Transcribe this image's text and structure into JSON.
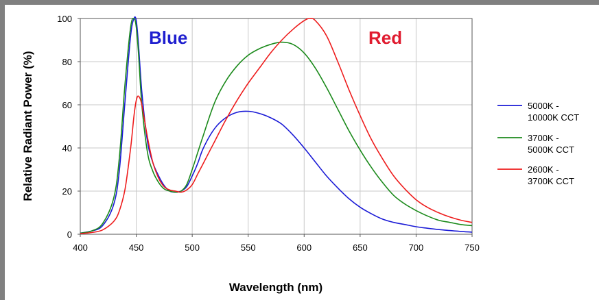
{
  "chart_data": {
    "type": "line",
    "title": "",
    "xlabel": "Wavelength (nm)",
    "ylabel": "Relative Radiant Power (%)",
    "xlim": [
      400,
      750
    ],
    "ylim": [
      0,
      100
    ],
    "xticks": [
      400,
      450,
      500,
      550,
      600,
      650,
      700,
      750
    ],
    "yticks": [
      0,
      20,
      40,
      60,
      80,
      100
    ],
    "grid": true,
    "legend_position": "right",
    "annotations": [
      {
        "text": "Blue",
        "color": "#1f1fcf"
      },
      {
        "text": "Red",
        "color": "#e01b2f"
      }
    ],
    "series": [
      {
        "name": "5000K - 10000K CCT",
        "legend_lines": [
          "5000K -",
          "10000K CCT"
        ],
        "color": "#1a1ad6",
        "x": [
          400,
          410,
          420,
          430,
          435,
          440,
          445,
          448,
          450,
          452,
          455,
          460,
          465,
          470,
          475,
          480,
          485,
          490,
          495,
          500,
          505,
          510,
          520,
          530,
          540,
          550,
          560,
          570,
          580,
          590,
          600,
          610,
          620,
          630,
          640,
          650,
          660,
          670,
          680,
          690,
          700,
          710,
          720,
          730,
          740,
          750
        ],
        "y": [
          0.5,
          1.5,
          4,
          14,
          30,
          62,
          92,
          100,
          99,
          88,
          66,
          43,
          33,
          27,
          22.5,
          20,
          19.5,
          20,
          22,
          27,
          33,
          40,
          49,
          54,
          56.5,
          57,
          56,
          54,
          51,
          46,
          40,
          33.5,
          27,
          21.5,
          16.5,
          12.5,
          9.5,
          7,
          5.5,
          4.5,
          3.5,
          2.8,
          2.2,
          1.7,
          1.3,
          1.0
        ]
      },
      {
        "name": "3700K - 5000K CCT",
        "legend_lines": [
          "3700K -",
          "5000K CCT"
        ],
        "color": "#1b8a1b",
        "x": [
          400,
          410,
          420,
          430,
          435,
          440,
          445,
          448,
          450,
          452,
          455,
          460,
          465,
          470,
          475,
          480,
          485,
          490,
          495,
          500,
          505,
          510,
          520,
          530,
          540,
          550,
          560,
          570,
          580,
          590,
          600,
          610,
          620,
          630,
          640,
          650,
          660,
          670,
          680,
          690,
          700,
          710,
          720,
          730,
          740,
          750
        ],
        "y": [
          0.5,
          1.5,
          5,
          17,
          36,
          70,
          96,
          100,
          96,
          84,
          60,
          38,
          29,
          24,
          21,
          20,
          19.5,
          20,
          23,
          30,
          38,
          46,
          61,
          71,
          78,
          83,
          86,
          88,
          89,
          88,
          84,
          77,
          68,
          58,
          48,
          39,
          31,
          24,
          18,
          14,
          11,
          8.5,
          6.5,
          5.5,
          4.5,
          4
        ]
      },
      {
        "name": "2600K - 3700K CCT",
        "legend_lines": [
          "2600K -",
          "3700K CCT"
        ],
        "color": "#ee1c1c",
        "x": [
          400,
          410,
          420,
          430,
          435,
          440,
          445,
          448,
          450,
          452,
          455,
          460,
          465,
          470,
          475,
          480,
          485,
          490,
          495,
          500,
          505,
          510,
          520,
          530,
          540,
          550,
          560,
          570,
          580,
          590,
          600,
          605,
          610,
          620,
          630,
          640,
          650,
          660,
          670,
          680,
          690,
          700,
          710,
          720,
          730,
          740,
          750
        ],
        "y": [
          0.3,
          0.8,
          2,
          6,
          11,
          21,
          40,
          55,
          62,
          64,
          60,
          45,
          33,
          26,
          22,
          20.5,
          20,
          19.5,
          20.5,
          23,
          28,
          33,
          43,
          53,
          62,
          70,
          77,
          84,
          90,
          95,
          99,
          100,
          99,
          92,
          80,
          67,
          55,
          44,
          35,
          27,
          21,
          16,
          12.5,
          10,
          8,
          6.5,
          5.5
        ]
      }
    ]
  }
}
